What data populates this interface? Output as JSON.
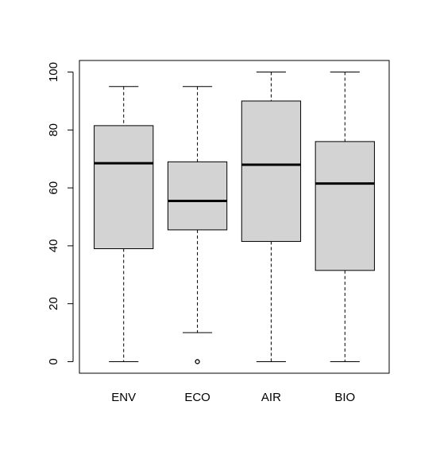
{
  "chart_data": {
    "type": "boxplot",
    "title": "",
    "xlabel": "",
    "ylabel": "",
    "ylim": [
      -4,
      104
    ],
    "y_ticks": [
      0,
      20,
      40,
      60,
      80,
      100
    ],
    "y_tick_labels": [
      "0",
      "20",
      "40",
      "60",
      "80",
      "100"
    ],
    "grid": false,
    "colors": {
      "box_fill": "#d3d3d3",
      "stroke": "#000000",
      "background": "#ffffff"
    },
    "categories": [
      "ENV",
      "ECO",
      "AIR",
      "BIO"
    ],
    "boxes": [
      {
        "label": "ENV",
        "whisker_low": 0,
        "q1": 39,
        "median": 68.5,
        "q3": 81.5,
        "whisker_high": 95,
        "outliers": []
      },
      {
        "label": "ECO",
        "whisker_low": 10,
        "q1": 45.5,
        "median": 55.5,
        "q3": 69,
        "whisker_high": 95,
        "outliers": [
          0
        ]
      },
      {
        "label": "AIR",
        "whisker_low": 0,
        "q1": 41.5,
        "median": 68,
        "q3": 90,
        "whisker_high": 100,
        "outliers": []
      },
      {
        "label": "BIO",
        "whisker_low": 0,
        "q1": 31.5,
        "median": 61.5,
        "q3": 76,
        "whisker_high": 100,
        "outliers": []
      }
    ]
  }
}
